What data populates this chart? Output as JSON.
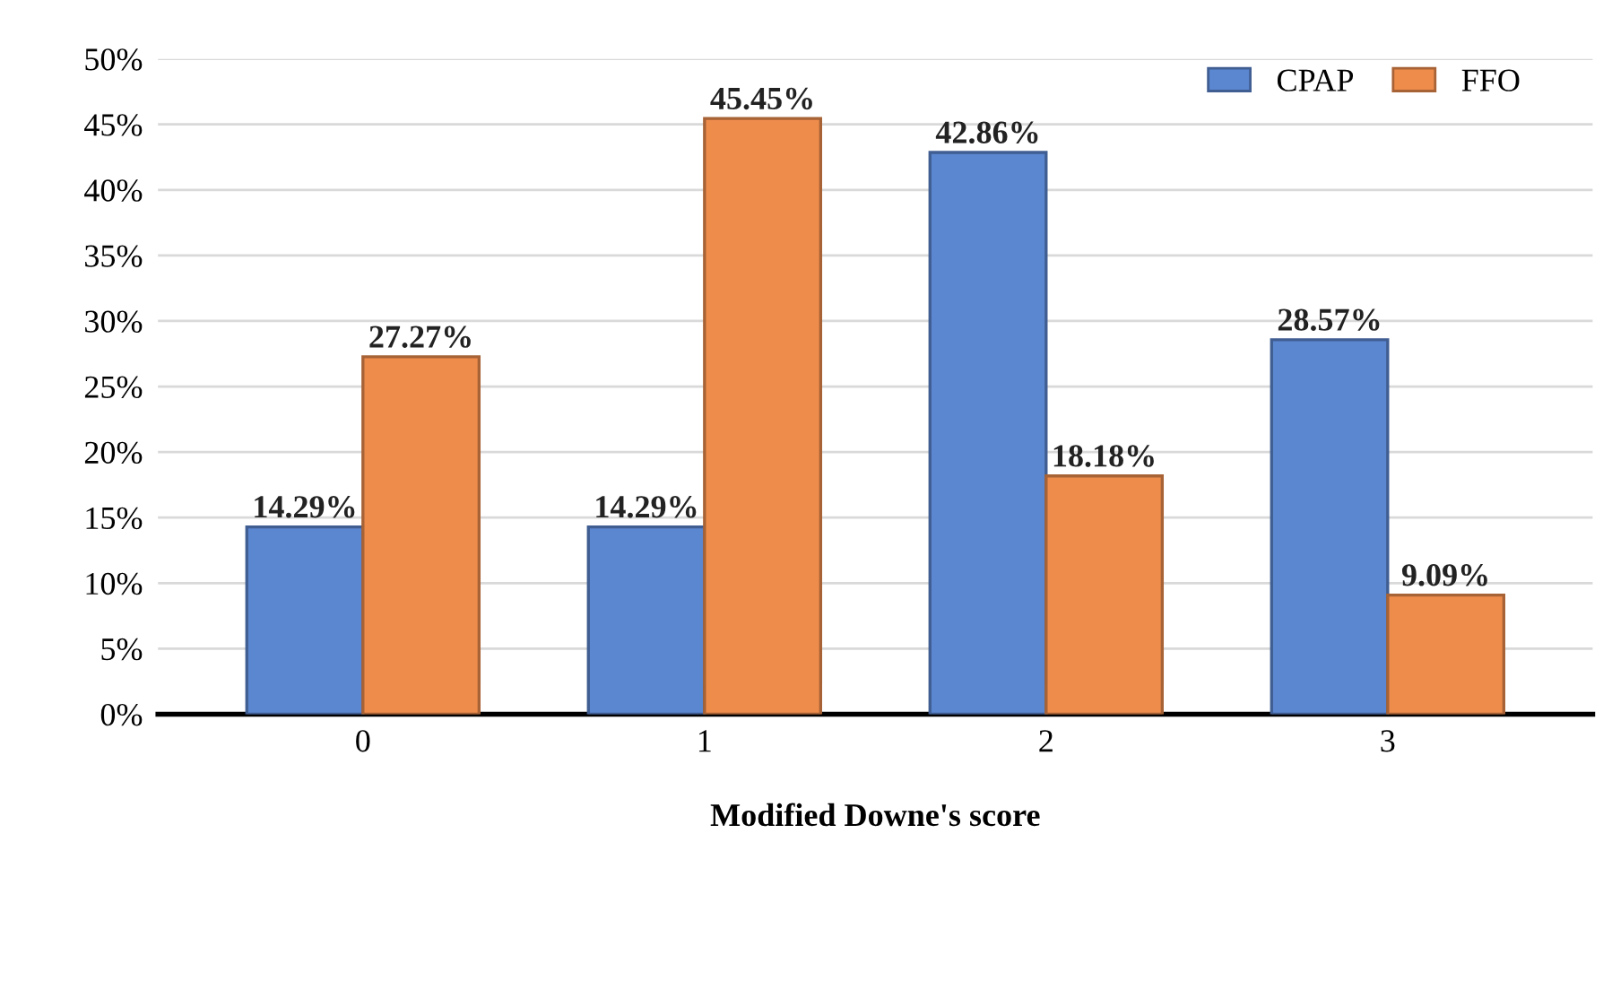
{
  "chart_data": {
    "type": "bar",
    "xlabel": "Modified Downe's score",
    "categories": [
      "0",
      "1",
      "2",
      "3"
    ],
    "series": [
      {
        "name": "CPAP",
        "color": "#5b87d0",
        "values": [
          14.29,
          14.29,
          42.86,
          28.57
        ],
        "value_labels": [
          "14.29%",
          "14.29%",
          "42.86%",
          "28.57%"
        ]
      },
      {
        "name": "FFO",
        "color": "#ee8c4c",
        "values": [
          27.27,
          45.45,
          18.18,
          9.09
        ],
        "value_labels": [
          "27.27%",
          "45.45%",
          "18.18%",
          "9.09%"
        ]
      }
    ],
    "ylim": [
      0,
      50
    ],
    "yticks": [
      {
        "value": 0,
        "label": "0%"
      },
      {
        "value": 5,
        "label": "5%"
      },
      {
        "value": 10,
        "label": "10%"
      },
      {
        "value": 15,
        "label": "15%"
      },
      {
        "value": 20,
        "label": "20%"
      },
      {
        "value": 25,
        "label": "25%"
      },
      {
        "value": 30,
        "label": "30%"
      },
      {
        "value": 35,
        "label": "35%"
      },
      {
        "value": 40,
        "label": "40%"
      },
      {
        "value": 45,
        "label": "45%"
      },
      {
        "value": 50,
        "label": "50%"
      }
    ],
    "grid": "y",
    "legend": "top right"
  }
}
